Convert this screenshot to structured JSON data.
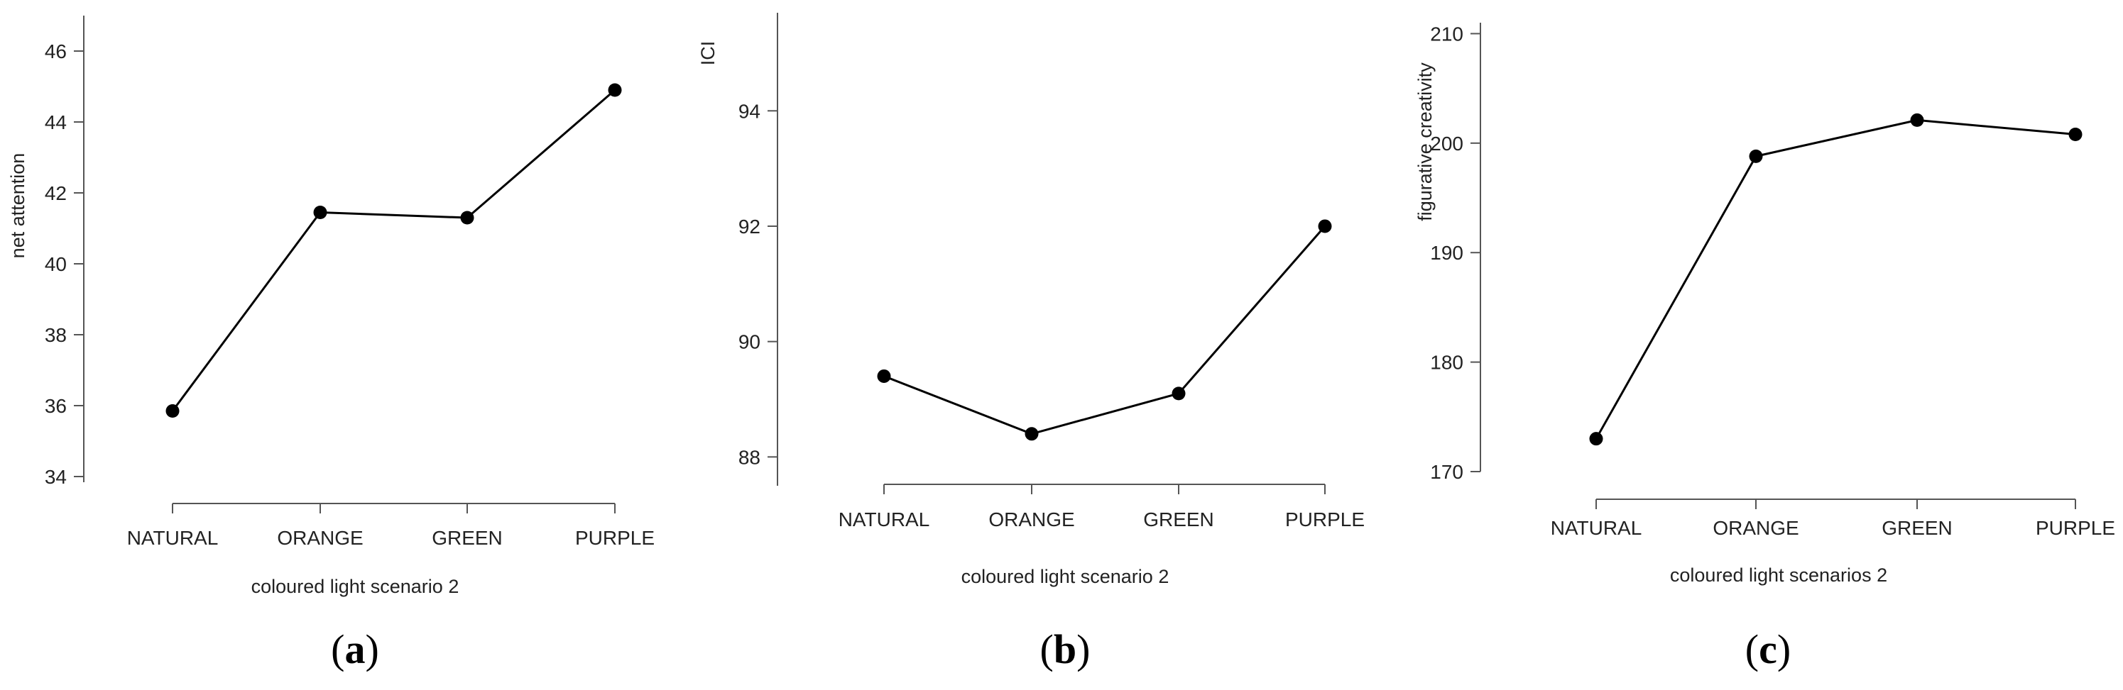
{
  "chart_data": [
    {
      "type": "line",
      "panel": "(a)",
      "panel_letter": "a",
      "title": "",
      "xlabel": "coloured light scenario 2",
      "ylabel": "net attention",
      "categories": [
        "NATURAL",
        "ORANGE",
        "GREEN",
        "PURPLE"
      ],
      "values": [
        35.85,
        41.45,
        41.3,
        44.9
      ],
      "yticks": [
        34,
        36,
        38,
        40,
        42,
        44,
        46
      ],
      "ylim": [
        34,
        47
      ],
      "color": "#000000"
    },
    {
      "type": "line",
      "panel": "(b)",
      "panel_letter": "b",
      "title": "",
      "xlabel": "coloured light scenario 2",
      "ylabel": "ICI",
      "categories": [
        "NATURAL",
        "ORANGE",
        "GREEN",
        "PURPLE"
      ],
      "values": [
        89.4,
        88.4,
        89.1,
        92.0
      ],
      "yticks": [
        88,
        90,
        92,
        94
      ],
      "ylim": [
        87.5,
        95.7
      ],
      "color": "#000000"
    },
    {
      "type": "line",
      "panel": "(c)",
      "panel_letter": "c",
      "title": "",
      "xlabel": "coloured light scenarios 2",
      "ylabel": "figurative creativity",
      "categories": [
        "NATURAL",
        "ORANGE",
        "GREEN",
        "PURPLE"
      ],
      "values": [
        173,
        198.8,
        202.1,
        200.8
      ],
      "yticks": [
        170,
        180,
        190,
        200,
        210
      ],
      "ylim": [
        170,
        211
      ],
      "color": "#000000"
    }
  ]
}
